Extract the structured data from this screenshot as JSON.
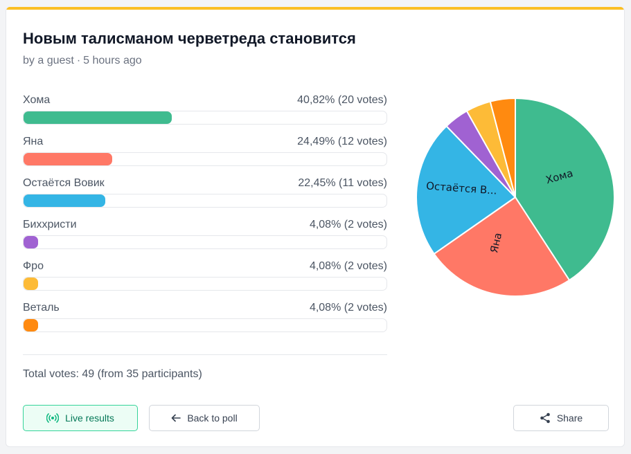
{
  "poll": {
    "title": "Новым талисманом черветреда становится",
    "author": "by a guest",
    "separator": "·",
    "time_ago": "5 hours ago"
  },
  "options": [
    {
      "label": "Хома",
      "percent": 40.82,
      "value_text": "40,82% (20 votes)",
      "color": "#3fbb8f"
    },
    {
      "label": "Яна",
      "percent": 24.49,
      "value_text": "24,49% (12 votes)",
      "color": "#ff7866"
    },
    {
      "label": "Остаётся Вовик",
      "percent": 22.45,
      "value_text": "22,45% (11 votes)",
      "color": "#34b5e5"
    },
    {
      "label": "Биххристи",
      "percent": 4.08,
      "value_text": "4,08% (2 votes)",
      "color": "#a062d2"
    },
    {
      "label": "Фро",
      "percent": 4.08,
      "value_text": "4,08% (2 votes)",
      "color": "#fdbb37"
    },
    {
      "label": "Веталь",
      "percent": 4.08,
      "value_text": "4,08% (2 votes)",
      "color": "#ff8a10"
    }
  ],
  "total_text": "Total votes: 49 (from 35 participants)",
  "buttons": {
    "live": "Live results",
    "back": "Back to poll",
    "share": "Share"
  },
  "pie_labels": {
    "homa": "Хома",
    "yana": "Яна",
    "vovik": "Остаётся В..."
  },
  "icons": {
    "live": "broadcast-icon",
    "back": "arrow-left-icon",
    "share": "share-icon"
  }
}
